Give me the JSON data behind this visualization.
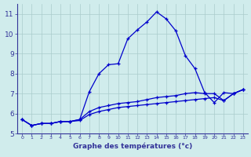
{
  "xlabel": "Graphe des températures (°c)",
  "hours": [
    0,
    1,
    2,
    3,
    4,
    5,
    6,
    7,
    8,
    9,
    10,
    11,
    12,
    13,
    14,
    15,
    16,
    17,
    18,
    19,
    20,
    21,
    22,
    23
  ],
  "line1": [
    5.7,
    5.4,
    5.5,
    5.5,
    5.6,
    5.6,
    5.7,
    7.1,
    8.0,
    8.45,
    8.5,
    9.75,
    10.2,
    10.6,
    11.1,
    10.75,
    10.15,
    8.9,
    8.25,
    7.05,
    6.55,
    7.05,
    7.0,
    7.2
  ],
  "line2": [
    5.7,
    5.4,
    5.5,
    5.5,
    5.6,
    5.6,
    5.7,
    6.1,
    6.3,
    6.4,
    6.5,
    6.55,
    6.6,
    6.7,
    6.8,
    6.85,
    6.9,
    7.0,
    7.05,
    7.0,
    7.0,
    6.65,
    7.0,
    7.2
  ],
  "line3": [
    5.7,
    5.4,
    5.5,
    5.5,
    5.6,
    5.6,
    5.65,
    5.95,
    6.1,
    6.2,
    6.3,
    6.35,
    6.4,
    6.45,
    6.5,
    6.55,
    6.6,
    6.65,
    6.7,
    6.75,
    6.8,
    6.65,
    7.0,
    7.2
  ],
  "line_color": "#0000cc",
  "bg_color": "#d0ecec",
  "grid_color": "#aacccc",
  "axis_color": "#333399",
  "ylim": [
    5.0,
    11.5
  ],
  "xlim": [
    -0.5,
    23.5
  ],
  "yticks": [
    5,
    6,
    7,
    8,
    9,
    10,
    11
  ],
  "xticks": [
    0,
    1,
    2,
    3,
    4,
    5,
    6,
    7,
    8,
    9,
    10,
    11,
    12,
    13,
    14,
    15,
    16,
    17,
    18,
    19,
    20,
    21,
    22,
    23
  ]
}
